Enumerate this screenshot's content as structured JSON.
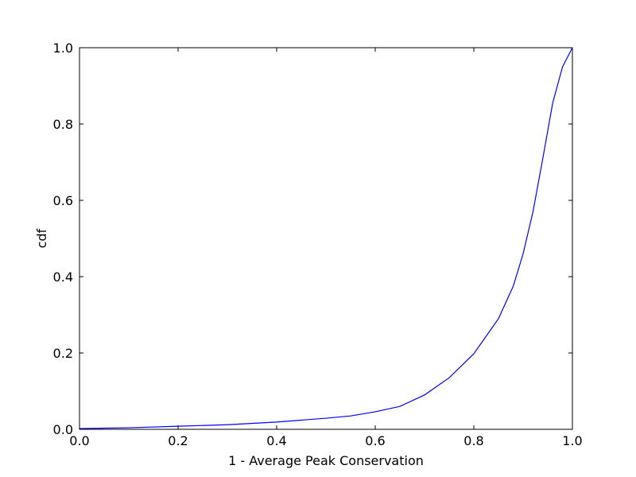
{
  "chart_data": {
    "type": "line",
    "x_label": "1 - Average Peak Conservation",
    "y_label": "cdf",
    "x": [
      0.0,
      0.1,
      0.2,
      0.3,
      0.4,
      0.5,
      0.55,
      0.6,
      0.65,
      0.7,
      0.75,
      0.8,
      0.85,
      0.88,
      0.9,
      0.92,
      0.94,
      0.96,
      0.98,
      1.0
    ],
    "series": [
      {
        "name": "cdf",
        "color": "#0000ff",
        "values": [
          0.002,
          0.004,
          0.008,
          0.012,
          0.019,
          0.029,
          0.035,
          0.046,
          0.06,
          0.09,
          0.135,
          0.198,
          0.29,
          0.375,
          0.46,
          0.57,
          0.71,
          0.855,
          0.95,
          1.0
        ]
      }
    ],
    "xlim": [
      0,
      1
    ],
    "ylim": [
      0,
      1
    ],
    "xticks": [
      {
        "value": 0,
        "label": "0.0"
      },
      0.2,
      0.4,
      0.6,
      0.8,
      {
        "value": 1,
        "label": "1.0"
      }
    ],
    "yticks": [
      {
        "value": 0,
        "label": "0.0"
      },
      0.2,
      0.4,
      0.6,
      0.8,
      {
        "value": 1,
        "label": "1.0"
      }
    ],
    "grid": false
  }
}
